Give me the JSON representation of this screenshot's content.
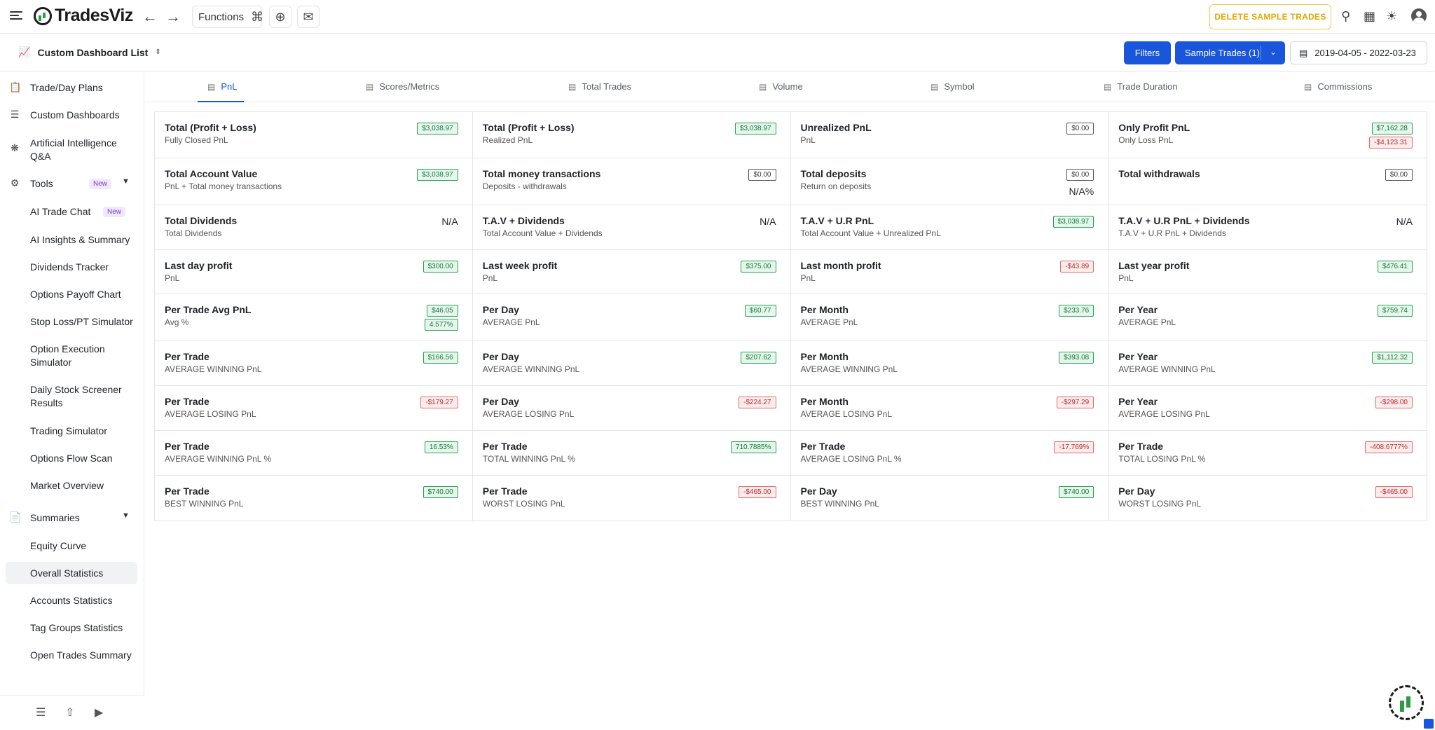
{
  "header": {
    "logo_text": "TradesViz",
    "functions_label": "Functions",
    "delete_sample_label": "DELETE SAMPLE TRADES"
  },
  "subbar": {
    "dashboard_list_label": "Custom Dashboard List",
    "filters_label": "Filters",
    "sample_trades_label": "Sample Trades (1)",
    "date_range": "2019-04-05 - 2022-03-23"
  },
  "sidebar": {
    "items": [
      {
        "label": "Trade/Day Plans",
        "icon": "clipboard-icon"
      },
      {
        "label": "Custom Dashboards",
        "icon": "layers-icon"
      },
      {
        "label": "Artificial Intelligence Q&A",
        "icon": "brain-icon"
      },
      {
        "label": "Tools",
        "icon": "gear-icon",
        "badge": "New"
      },
      {
        "label": "AI Trade Chat",
        "badge": "New"
      },
      {
        "label": "AI Insights & Summary"
      },
      {
        "label": "Dividends Tracker"
      },
      {
        "label": "Options Payoff Chart"
      },
      {
        "label": "Stop Loss/PT Simulator"
      },
      {
        "label": "Option Execution Simulator"
      },
      {
        "label": "Daily Stock Screener Results"
      },
      {
        "label": "Trading Simulator"
      },
      {
        "label": "Options Flow Scan"
      },
      {
        "label": "Market Overview"
      },
      {
        "label": "Summaries",
        "icon": "document-icon"
      },
      {
        "label": "Equity Curve"
      },
      {
        "label": "Overall Statistics"
      },
      {
        "label": "Accounts Statistics"
      },
      {
        "label": "Tag Groups Statistics"
      },
      {
        "label": "Open Trades Summary"
      }
    ]
  },
  "tabs": [
    "PnL",
    "Scores/Metrics",
    "Total Trades",
    "Volume",
    "Symbol",
    "Trade Duration",
    "Commissions"
  ],
  "grid": [
    [
      {
        "title": "Total (Profit + Loss)",
        "sub": "Fully Closed PnL",
        "values": [
          {
            "v": "$3,038.97",
            "k": "pos"
          }
        ]
      },
      {
        "title": "Total (Profit + Loss)",
        "sub": "Realized PnL",
        "values": [
          {
            "v": "$3,038.97",
            "k": "pos"
          }
        ]
      },
      {
        "title": "Unrealized PnL",
        "sub": "PnL",
        "values": [
          {
            "v": "$0.00",
            "k": "neu"
          }
        ]
      },
      {
        "title": "Only Profit PnL",
        "sub": "Only Loss PnL",
        "values": [
          {
            "v": "$7,162.28",
            "k": "pos"
          },
          {
            "v": "-$4,123.31",
            "k": "neg"
          }
        ]
      }
    ],
    [
      {
        "title": "Total Account Value",
        "sub": "PnL + Total money transactions",
        "values": [
          {
            "v": "$3,038.97",
            "k": "pos"
          }
        ]
      },
      {
        "title": "Total money transactions",
        "sub": "Deposits - withdrawals",
        "values": [
          {
            "v": "$0.00",
            "k": "neu"
          }
        ]
      },
      {
        "title": "Total deposits",
        "sub": "Return on deposits",
        "values": [
          {
            "v": "$0.00",
            "k": "neu"
          },
          {
            "v": "N/A%",
            "k": "plain"
          }
        ]
      },
      {
        "title": "Total withdrawals",
        "sub": "",
        "values": [
          {
            "v": "$0.00",
            "k": "neu"
          }
        ]
      }
    ],
    [
      {
        "title": "Total Dividends",
        "sub": "Total Dividends",
        "values": [
          {
            "v": "N/A",
            "k": "plain"
          }
        ]
      },
      {
        "title": "T.A.V + Dividends",
        "sub": "Total Account Value + Dividends",
        "values": [
          {
            "v": "N/A",
            "k": "plain"
          }
        ]
      },
      {
        "title": "T.A.V + U.R PnL",
        "sub": "Total Account Value + Unrealized PnL",
        "values": [
          {
            "v": "$3,038.97",
            "k": "pos"
          }
        ]
      },
      {
        "title": "T.A.V + U.R PnL + Dividends",
        "sub": "T.A.V + U.R PnL + Dividends",
        "values": [
          {
            "v": "N/A",
            "k": "plain"
          }
        ]
      }
    ],
    [
      {
        "title": "Last day profit",
        "sub": "PnL",
        "values": [
          {
            "v": "$300.00",
            "k": "pos"
          }
        ]
      },
      {
        "title": "Last week profit",
        "sub": "PnL",
        "values": [
          {
            "v": "$375.00",
            "k": "pos"
          }
        ]
      },
      {
        "title": "Last month profit",
        "sub": "PnL",
        "values": [
          {
            "v": "-$43.89",
            "k": "neg"
          }
        ]
      },
      {
        "title": "Last year profit",
        "sub": "PnL",
        "values": [
          {
            "v": "$476.41",
            "k": "pos"
          }
        ]
      }
    ],
    [
      {
        "title": "Per Trade Avg PnL",
        "sub": "Avg %",
        "values": [
          {
            "v": "$46.05",
            "k": "pos"
          },
          {
            "v": "4.577%",
            "k": "pos"
          }
        ]
      },
      {
        "title": "Per Day",
        "sub": "AVERAGE PnL",
        "values": [
          {
            "v": "$60.77",
            "k": "pos"
          }
        ]
      },
      {
        "title": "Per Month",
        "sub": "AVERAGE PnL",
        "values": [
          {
            "v": "$233.76",
            "k": "pos"
          }
        ]
      },
      {
        "title": "Per Year",
        "sub": "AVERAGE PnL",
        "values": [
          {
            "v": "$759.74",
            "k": "pos"
          }
        ]
      }
    ],
    [
      {
        "title": "Per Trade",
        "sub": "AVERAGE WINNING PnL",
        "values": [
          {
            "v": "$166.56",
            "k": "pos"
          }
        ]
      },
      {
        "title": "Per Day",
        "sub": "AVERAGE WINNING PnL",
        "values": [
          {
            "v": "$207.62",
            "k": "pos"
          }
        ]
      },
      {
        "title": "Per Month",
        "sub": "AVERAGE WINNING PnL",
        "values": [
          {
            "v": "$393.08",
            "k": "pos"
          }
        ]
      },
      {
        "title": "Per Year",
        "sub": "AVERAGE WINNING PnL",
        "values": [
          {
            "v": "$1,112.32",
            "k": "pos"
          }
        ]
      }
    ],
    [
      {
        "title": "Per Trade",
        "sub": "AVERAGE LOSING PnL",
        "values": [
          {
            "v": "-$179.27",
            "k": "neg"
          }
        ]
      },
      {
        "title": "Per Day",
        "sub": "AVERAGE LOSING PnL",
        "values": [
          {
            "v": "-$224.27",
            "k": "neg"
          }
        ]
      },
      {
        "title": "Per Month",
        "sub": "AVERAGE LOSING PnL",
        "values": [
          {
            "v": "-$297.29",
            "k": "neg"
          }
        ]
      },
      {
        "title": "Per Year",
        "sub": "AVERAGE LOSING PnL",
        "values": [
          {
            "v": "-$298.00",
            "k": "neg"
          }
        ]
      }
    ],
    [
      {
        "title": "Per Trade",
        "sub": "AVERAGE WINNING PnL %",
        "values": [
          {
            "v": "16.53%",
            "k": "pos"
          }
        ]
      },
      {
        "title": "Per Trade",
        "sub": "TOTAL WINNING PnL %",
        "values": [
          {
            "v": "710.7885%",
            "k": "pos"
          }
        ]
      },
      {
        "title": "Per Trade",
        "sub": "AVERAGE LOSING PnL %",
        "values": [
          {
            "v": "-17.769%",
            "k": "neg"
          }
        ]
      },
      {
        "title": "Per Trade",
        "sub": "TOTAL LOSING PnL %",
        "values": [
          {
            "v": "-408.6777%",
            "k": "neg"
          }
        ]
      }
    ],
    [
      {
        "title": "Per Trade",
        "sub": "BEST WINNING PnL",
        "values": [
          {
            "v": "$740.00",
            "k": "pos"
          }
        ]
      },
      {
        "title": "Per Trade",
        "sub": "WORST LOSING PnL",
        "values": [
          {
            "v": "-$465.00",
            "k": "neg"
          }
        ]
      },
      {
        "title": "Per Day",
        "sub": "BEST WINNING PnL",
        "values": [
          {
            "v": "$740.00",
            "k": "pos"
          }
        ]
      },
      {
        "title": "Per Day",
        "sub": "WORST LOSING PnL",
        "values": [
          {
            "v": "-$465.00",
            "k": "neg"
          }
        ]
      }
    ]
  ]
}
